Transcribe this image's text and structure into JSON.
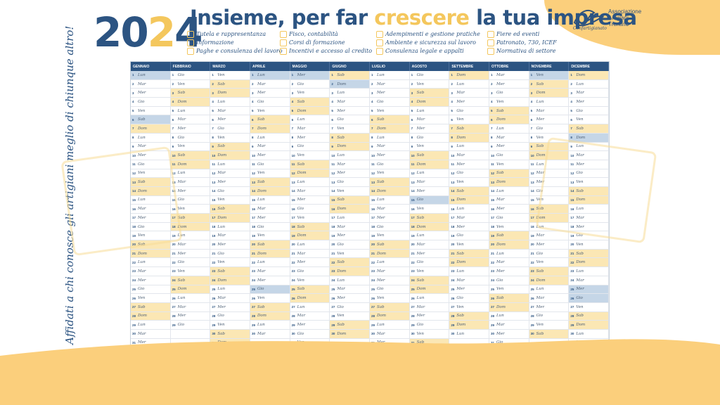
{
  "year": {
    "digits_blue_1": "20",
    "digit_yellow": "2",
    "digits_blue_2": "4"
  },
  "headline": {
    "part1": "Insieme, per far ",
    "highlight": "crescere",
    "part2": " la tua impresa"
  },
  "services": [
    "Tutela e rappresentanza",
    "Fisco, contabilità",
    "Adempimenti e gestione pratiche",
    "Fiere ed eventi",
    "Informazione",
    "Corsi di formazione",
    "Ambiente e sicurezza sul lavoro",
    "Patronato, 730, ICEF",
    "Paghe e consulenza del lavoro",
    "Incentivi e accesso al credito",
    "Consulenza legale e appalti",
    "Normativa di settore"
  ],
  "logo": {
    "line1": "Associazione",
    "line2": "Artigiani",
    "line3": "Trentino",
    "brand": "Confartigianato"
  },
  "side_text": "Affidati a chi conosce gli artigiani meglio di chiunque altro!",
  "months": [
    "GENNAIO",
    "FEBBRAIO",
    "MARZO",
    "APRILE",
    "MAGGIO",
    "GIUGNO",
    "LUGLIO",
    "AGOSTO",
    "SETTEMBRE",
    "OTTOBRE",
    "NOVEMBRE",
    "DICEMBRE"
  ],
  "month_start_weekday": [
    0,
    3,
    4,
    0,
    2,
    5,
    0,
    3,
    6,
    1,
    4,
    6
  ],
  "month_days": [
    31,
    29,
    31,
    30,
    31,
    30,
    31,
    31,
    30,
    31,
    30,
    31
  ],
  "weekday_names": [
    "Lun",
    "Mar",
    "Mer",
    "Gio",
    "Ven",
    "Sab",
    "Dom"
  ],
  "holidays": [
    [
      1,
      1
    ],
    [
      1,
      6
    ],
    [
      4,
      1
    ],
    [
      4,
      25
    ],
    [
      5,
      1
    ],
    [
      6,
      2
    ],
    [
      8,
      15
    ],
    [
      11,
      1
    ],
    [
      12,
      8
    ],
    [
      12,
      25
    ],
    [
      12,
      26
    ]
  ],
  "colors": {
    "navy": "#2c5482",
    "yellow": "#f4c75d",
    "weekend": "#fbe7b4",
    "holiday": "#c5d6e7",
    "wave": "#fbcf7c"
  }
}
